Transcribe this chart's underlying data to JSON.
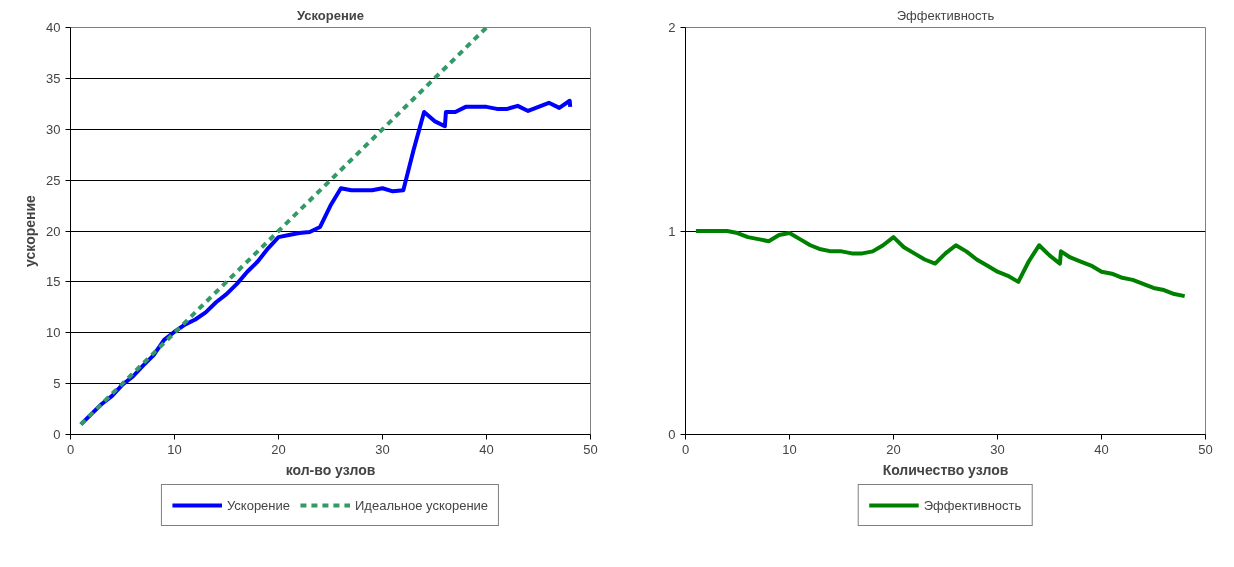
{
  "chart_data": [
    {
      "type": "line",
      "title": "Ускорение",
      "xlabel": "кол-во узлов",
      "ylabel": "ускорение",
      "xlim": [
        0,
        50
      ],
      "xticks": [
        0,
        10,
        20,
        30,
        40,
        50
      ],
      "ylim": [
        0,
        40
      ],
      "yticks": [
        0,
        5,
        10,
        15,
        20,
        25,
        30,
        35,
        40
      ],
      "grid": "y",
      "legend": "bottom",
      "series": [
        {
          "name": "Ускорение",
          "color": "#0000ff",
          "line_style": "solid",
          "x": [
            1,
            2,
            3,
            4,
            5,
            6,
            7,
            8,
            9,
            10,
            11,
            12,
            13,
            14,
            15,
            16,
            17,
            18,
            19,
            20,
            21,
            22,
            23,
            24,
            25,
            26,
            27,
            28,
            29,
            30,
            31,
            32,
            33,
            34,
            35,
            36,
            36.1,
            37,
            38,
            39,
            40,
            41,
            42,
            43,
            44,
            45,
            46,
            47,
            48,
            48.05
          ],
          "values": [
            1,
            2,
            3,
            3.8,
            4.9,
            5.7,
            6.8,
            7.8,
            9.3,
            10.1,
            10.8,
            11.3,
            12,
            13,
            13.8,
            14.8,
            16,
            17,
            18.3,
            19.4,
            19.6,
            19.8,
            19.9,
            20.4,
            22.5,
            24.2,
            24,
            24,
            24,
            24.2,
            23.9,
            24,
            28,
            31.7,
            30.8,
            30.3,
            31.7,
            31.7,
            32.2,
            32.2,
            32.2,
            32,
            32,
            32.3,
            31.8,
            32.2,
            32.6,
            32.1,
            32.8,
            32.2
          ]
        },
        {
          "name": "Идеальное ускорение",
          "color": "#339966",
          "line_style": "dashed",
          "x": [
            1,
            40
          ],
          "values": [
            1,
            40
          ]
        }
      ]
    },
    {
      "type": "line",
      "title": "Эффективность",
      "xlabel": "Количество узлов",
      "xlim": [
        0,
        50
      ],
      "xticks": [
        0,
        10,
        20,
        30,
        40,
        50
      ],
      "ylim": [
        0,
        2
      ],
      "yticks": [
        0,
        1,
        2
      ],
      "grid": "y",
      "legend": "bottom",
      "series": [
        {
          "name": "Эффективность",
          "color": "#008000",
          "line_style": "solid",
          "x": [
            1,
            2,
            3,
            4,
            5,
            6,
            7,
            8,
            9,
            10,
            11,
            12,
            13,
            14,
            15,
            16,
            17,
            18,
            19,
            20,
            21,
            22,
            23,
            24,
            25,
            26,
            27,
            28,
            29,
            30,
            31,
            32,
            33,
            34,
            35,
            36,
            36.1,
            37,
            38,
            39,
            40,
            41,
            42,
            43,
            44,
            45,
            46,
            47,
            48
          ],
          "values": [
            1,
            1,
            1,
            1,
            0.99,
            0.97,
            0.96,
            0.95,
            0.98,
            0.99,
            0.96,
            0.93,
            0.91,
            0.9,
            0.9,
            0.89,
            0.89,
            0.9,
            0.93,
            0.97,
            0.92,
            0.89,
            0.86,
            0.84,
            0.89,
            0.93,
            0.9,
            0.86,
            0.83,
            0.8,
            0.78,
            0.75,
            0.85,
            0.93,
            0.88,
            0.84,
            0.9,
            0.87,
            0.85,
            0.83,
            0.8,
            0.79,
            0.77,
            0.76,
            0.74,
            0.72,
            0.71,
            0.69,
            0.68
          ]
        }
      ]
    }
  ]
}
